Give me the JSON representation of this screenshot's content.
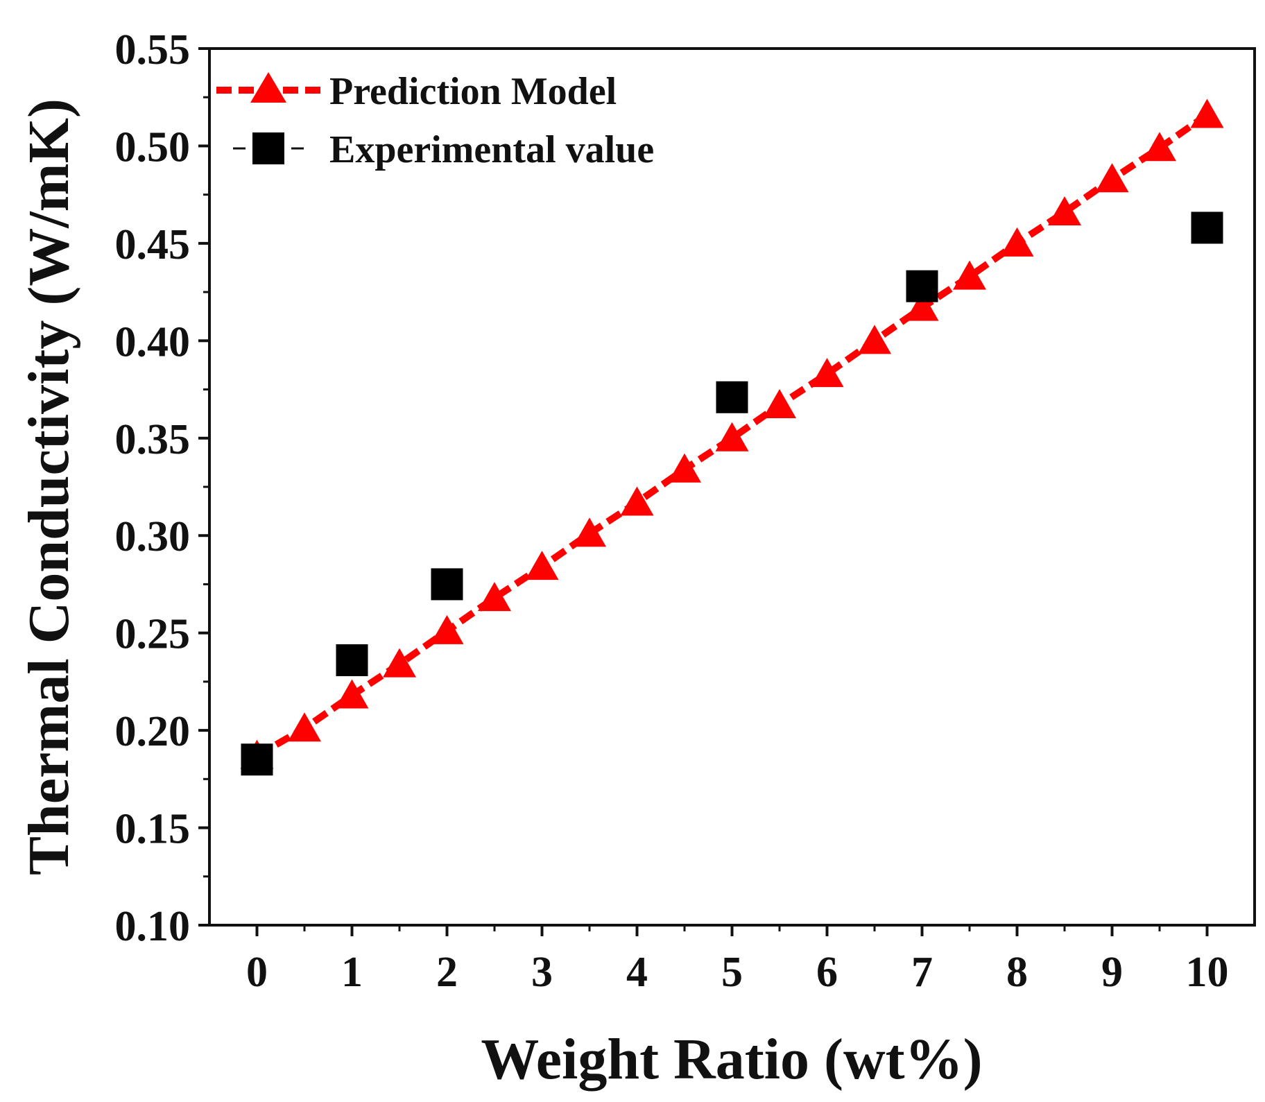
{
  "chart_data": {
    "type": "scatter",
    "title": "",
    "xlabel": "Weight Ratio (wt%)",
    "ylabel": "Thermal Conductivity (W/mK)",
    "xlim": [
      -0.5,
      10.5
    ],
    "ylim": [
      0.1,
      0.55
    ],
    "xticks": [
      0,
      1,
      2,
      3,
      4,
      5,
      6,
      7,
      8,
      9,
      10
    ],
    "xtick_labels": [
      "0",
      "1",
      "2",
      "3",
      "4",
      "5",
      "6",
      "7",
      "8",
      "9",
      "10"
    ],
    "yticks": [
      0.1,
      0.15,
      0.2,
      0.25,
      0.3,
      0.35,
      0.4,
      0.45,
      0.5,
      0.55
    ],
    "ytick_labels": [
      "0.10",
      "0.15",
      "0.20",
      "0.25",
      "0.30",
      "0.35",
      "0.40",
      "0.45",
      "0.50",
      "0.55"
    ],
    "grid": false,
    "legend_position": "top-left",
    "series": [
      {
        "name": "Prediction Model",
        "marker": "triangle",
        "line": "dashed",
        "color": "#ff0000",
        "x": [
          0,
          0.5,
          1,
          1.5,
          2,
          2.5,
          3,
          3.5,
          4,
          4.5,
          5,
          5.5,
          6,
          6.5,
          7,
          7.5,
          8,
          8.5,
          9,
          9.5,
          10
        ],
        "y": [
          0.187,
          0.201,
          0.218,
          0.234,
          0.251,
          0.268,
          0.284,
          0.301,
          0.317,
          0.334,
          0.35,
          0.367,
          0.383,
          0.4,
          0.417,
          0.433,
          0.45,
          0.466,
          0.483,
          0.499,
          0.516
        ]
      },
      {
        "name": "Experimental value",
        "marker": "square",
        "line": "none",
        "color": "#000000",
        "x": [
          0,
          1,
          2,
          5,
          7,
          10
        ],
        "y": [
          0.185,
          0.236,
          0.275,
          0.371,
          0.428,
          0.458
        ]
      }
    ]
  }
}
